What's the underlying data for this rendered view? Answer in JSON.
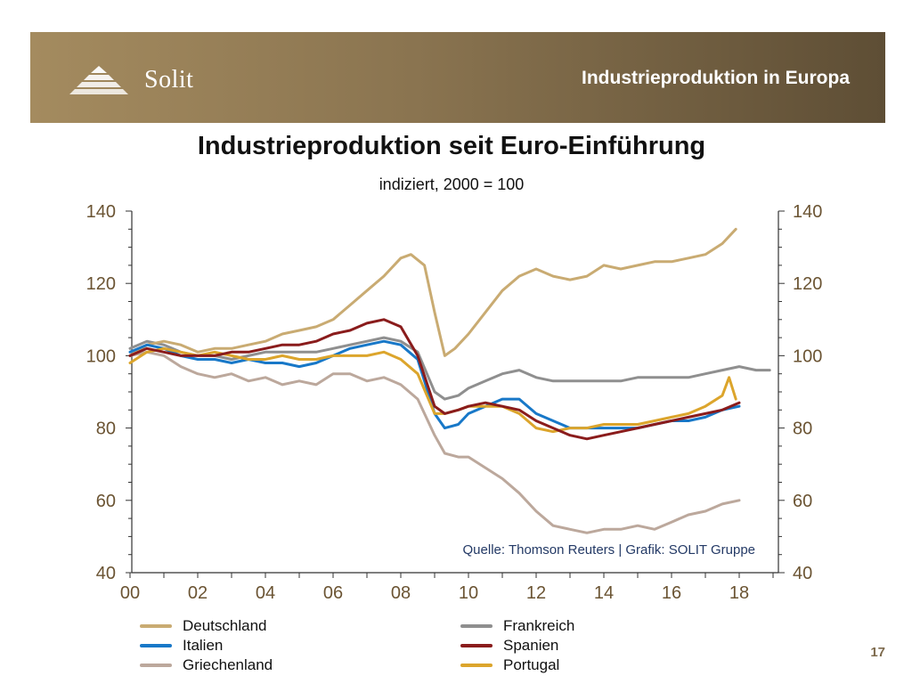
{
  "header": {
    "brand": "Solit",
    "title": "Industrieproduktion in Europa"
  },
  "page_number": "17",
  "colors": {
    "banner_start": "#a48b5f",
    "banner_end": "#5e4e35",
    "axis": "#333333",
    "tick_text": "#6b5433"
  },
  "chart_data": {
    "type": "line",
    "title": "Industrieproduktion seit Euro-Einführung",
    "subtitle": "indiziert, 2000 = 100",
    "source": "Quelle: Thomson Reuters | Grafik: SOLIT Gruppe",
    "x_range": [
      2000,
      2019
    ],
    "ylim": [
      40,
      140
    ],
    "y_ticks": [
      40,
      60,
      80,
      100,
      120,
      140
    ],
    "x_tick_values": [
      2000,
      2002,
      2004,
      2006,
      2008,
      2010,
      2012,
      2014,
      2016,
      2018
    ],
    "x_tick_labels": [
      "00",
      "02",
      "04",
      "06",
      "08",
      "10",
      "12",
      "14",
      "16",
      "18"
    ],
    "legend_placement": "bottom",
    "series": [
      {
        "name": "Deutschland",
        "color": "#c9ab72",
        "points": [
          [
            2000,
            100
          ],
          [
            2000.5,
            103
          ],
          [
            2001,
            104
          ],
          [
            2001.5,
            103
          ],
          [
            2002,
            101
          ],
          [
            2002.5,
            102
          ],
          [
            2003,
            102
          ],
          [
            2003.5,
            103
          ],
          [
            2004,
            104
          ],
          [
            2004.5,
            106
          ],
          [
            2005,
            107
          ],
          [
            2005.5,
            108
          ],
          [
            2006,
            110
          ],
          [
            2006.5,
            114
          ],
          [
            2007,
            118
          ],
          [
            2007.5,
            122
          ],
          [
            2008,
            127
          ],
          [
            2008.3,
            128
          ],
          [
            2008.7,
            125
          ],
          [
            2009,
            112
          ],
          [
            2009.3,
            100
          ],
          [
            2009.6,
            102
          ],
          [
            2010,
            106
          ],
          [
            2010.5,
            112
          ],
          [
            2011,
            118
          ],
          [
            2011.5,
            122
          ],
          [
            2012,
            124
          ],
          [
            2012.5,
            122
          ],
          [
            2013,
            121
          ],
          [
            2013.5,
            122
          ],
          [
            2014,
            125
          ],
          [
            2014.5,
            124
          ],
          [
            2015,
            125
          ],
          [
            2015.5,
            126
          ],
          [
            2016,
            126
          ],
          [
            2016.5,
            127
          ],
          [
            2017,
            128
          ],
          [
            2017.5,
            131
          ],
          [
            2017.9,
            135
          ]
        ]
      },
      {
        "name": "Frankreich",
        "color": "#8f8f8f",
        "points": [
          [
            2000,
            102
          ],
          [
            2000.5,
            104
          ],
          [
            2001,
            103
          ],
          [
            2001.5,
            101
          ],
          [
            2002,
            100
          ],
          [
            2002.5,
            100
          ],
          [
            2003,
            99
          ],
          [
            2003.5,
            100
          ],
          [
            2004,
            101
          ],
          [
            2004.5,
            101
          ],
          [
            2005,
            101
          ],
          [
            2005.5,
            101
          ],
          [
            2006,
            102
          ],
          [
            2006.5,
            103
          ],
          [
            2007,
            104
          ],
          [
            2007.5,
            105
          ],
          [
            2008,
            104
          ],
          [
            2008.5,
            101
          ],
          [
            2009,
            90
          ],
          [
            2009.3,
            88
          ],
          [
            2009.7,
            89
          ],
          [
            2010,
            91
          ],
          [
            2010.5,
            93
          ],
          [
            2011,
            95
          ],
          [
            2011.5,
            96
          ],
          [
            2012,
            94
          ],
          [
            2012.5,
            93
          ],
          [
            2013,
            93
          ],
          [
            2013.5,
            93
          ],
          [
            2014,
            93
          ],
          [
            2014.5,
            93
          ],
          [
            2015,
            94
          ],
          [
            2015.5,
            94
          ],
          [
            2016,
            94
          ],
          [
            2016.5,
            94
          ],
          [
            2017,
            95
          ],
          [
            2017.5,
            96
          ],
          [
            2018,
            97
          ],
          [
            2018.5,
            96
          ],
          [
            2018.9,
            96
          ]
        ]
      },
      {
        "name": "Italien",
        "color": "#1878c8",
        "points": [
          [
            2000,
            101
          ],
          [
            2000.5,
            103
          ],
          [
            2001,
            102
          ],
          [
            2001.5,
            100
          ],
          [
            2002,
            99
          ],
          [
            2002.5,
            99
          ],
          [
            2003,
            98
          ],
          [
            2003.5,
            99
          ],
          [
            2004,
            98
          ],
          [
            2004.5,
            98
          ],
          [
            2005,
            97
          ],
          [
            2005.5,
            98
          ],
          [
            2006,
            100
          ],
          [
            2006.5,
            102
          ],
          [
            2007,
            103
          ],
          [
            2007.5,
            104
          ],
          [
            2008,
            103
          ],
          [
            2008.5,
            99
          ],
          [
            2009,
            84
          ],
          [
            2009.3,
            80
          ],
          [
            2009.7,
            81
          ],
          [
            2010,
            84
          ],
          [
            2010.5,
            86
          ],
          [
            2011,
            88
          ],
          [
            2011.5,
            88
          ],
          [
            2012,
            84
          ],
          [
            2012.5,
            82
          ],
          [
            2013,
            80
          ],
          [
            2013.5,
            80
          ],
          [
            2014,
            80
          ],
          [
            2014.5,
            80
          ],
          [
            2015,
            80
          ],
          [
            2015.5,
            81
          ],
          [
            2016,
            82
          ],
          [
            2016.5,
            82
          ],
          [
            2017,
            83
          ],
          [
            2017.5,
            85
          ],
          [
            2018,
            86
          ]
        ]
      },
      {
        "name": "Spanien",
        "color": "#8a1c1c",
        "points": [
          [
            2000,
            100
          ],
          [
            2000.5,
            102
          ],
          [
            2001,
            101
          ],
          [
            2001.5,
            100
          ],
          [
            2002,
            100
          ],
          [
            2002.5,
            100
          ],
          [
            2003,
            101
          ],
          [
            2003.5,
            101
          ],
          [
            2004,
            102
          ],
          [
            2004.5,
            103
          ],
          [
            2005,
            103
          ],
          [
            2005.5,
            104
          ],
          [
            2006,
            106
          ],
          [
            2006.5,
            107
          ],
          [
            2007,
            109
          ],
          [
            2007.5,
            110
          ],
          [
            2008,
            108
          ],
          [
            2008.5,
            100
          ],
          [
            2009,
            86
          ],
          [
            2009.3,
            84
          ],
          [
            2009.7,
            85
          ],
          [
            2010,
            86
          ],
          [
            2010.5,
            87
          ],
          [
            2011,
            86
          ],
          [
            2011.5,
            85
          ],
          [
            2012,
            82
          ],
          [
            2012.5,
            80
          ],
          [
            2013,
            78
          ],
          [
            2013.5,
            77
          ],
          [
            2014,
            78
          ],
          [
            2014.5,
            79
          ],
          [
            2015,
            80
          ],
          [
            2015.5,
            81
          ],
          [
            2016,
            82
          ],
          [
            2016.5,
            83
          ],
          [
            2017,
            84
          ],
          [
            2017.5,
            85
          ],
          [
            2018,
            87
          ]
        ]
      },
      {
        "name": "Griechenland",
        "color": "#bca89c",
        "points": [
          [
            2000,
            100
          ],
          [
            2000.5,
            101
          ],
          [
            2001,
            100
          ],
          [
            2001.5,
            97
          ],
          [
            2002,
            95
          ],
          [
            2002.5,
            94
          ],
          [
            2003,
            95
          ],
          [
            2003.5,
            93
          ],
          [
            2004,
            94
          ],
          [
            2004.5,
            92
          ],
          [
            2005,
            93
          ],
          [
            2005.5,
            92
          ],
          [
            2006,
            95
          ],
          [
            2006.5,
            95
          ],
          [
            2007,
            93
          ],
          [
            2007.5,
            94
          ],
          [
            2008,
            92
          ],
          [
            2008.5,
            88
          ],
          [
            2009,
            78
          ],
          [
            2009.3,
            73
          ],
          [
            2009.7,
            72
          ],
          [
            2010,
            72
          ],
          [
            2010.5,
            69
          ],
          [
            2011,
            66
          ],
          [
            2011.5,
            62
          ],
          [
            2012,
            57
          ],
          [
            2012.5,
            53
          ],
          [
            2013,
            52
          ],
          [
            2013.5,
            51
          ],
          [
            2014,
            52
          ],
          [
            2014.5,
            52
          ],
          [
            2015,
            53
          ],
          [
            2015.5,
            52
          ],
          [
            2016,
            54
          ],
          [
            2016.5,
            56
          ],
          [
            2017,
            57
          ],
          [
            2017.5,
            59
          ],
          [
            2018,
            60
          ]
        ]
      },
      {
        "name": "Portugal",
        "color": "#dca52c",
        "points": [
          [
            2000,
            98
          ],
          [
            2000.5,
            101
          ],
          [
            2001,
            102
          ],
          [
            2001.5,
            101
          ],
          [
            2002,
            100
          ],
          [
            2002.5,
            101
          ],
          [
            2003,
            100
          ],
          [
            2003.5,
            99
          ],
          [
            2004,
            99
          ],
          [
            2004.5,
            100
          ],
          [
            2005,
            99
          ],
          [
            2005.5,
            99
          ],
          [
            2006,
            100
          ],
          [
            2006.5,
            100
          ],
          [
            2007,
            100
          ],
          [
            2007.5,
            101
          ],
          [
            2008,
            99
          ],
          [
            2008.5,
            95
          ],
          [
            2009,
            84
          ],
          [
            2009.3,
            84
          ],
          [
            2009.7,
            85
          ],
          [
            2010,
            86
          ],
          [
            2010.5,
            86
          ],
          [
            2011,
            86
          ],
          [
            2011.5,
            84
          ],
          [
            2012,
            80
          ],
          [
            2012.5,
            79
          ],
          [
            2013,
            80
          ],
          [
            2013.5,
            80
          ],
          [
            2014,
            81
          ],
          [
            2014.5,
            81
          ],
          [
            2015,
            81
          ],
          [
            2015.5,
            82
          ],
          [
            2016,
            83
          ],
          [
            2016.5,
            84
          ],
          [
            2017,
            86
          ],
          [
            2017.5,
            89
          ],
          [
            2017.7,
            94
          ],
          [
            2017.9,
            88
          ]
        ]
      }
    ]
  },
  "legend": {
    "items": [
      {
        "label": "Deutschland",
        "color": "#c9ab72"
      },
      {
        "label": "Frankreich",
        "color": "#8f8f8f"
      },
      {
        "label": "Italien",
        "color": "#1878c8"
      },
      {
        "label": "Spanien",
        "color": "#8a1c1c"
      },
      {
        "label": "Griechenland",
        "color": "#bca89c"
      },
      {
        "label": "Portugal",
        "color": "#dca52c"
      }
    ]
  }
}
